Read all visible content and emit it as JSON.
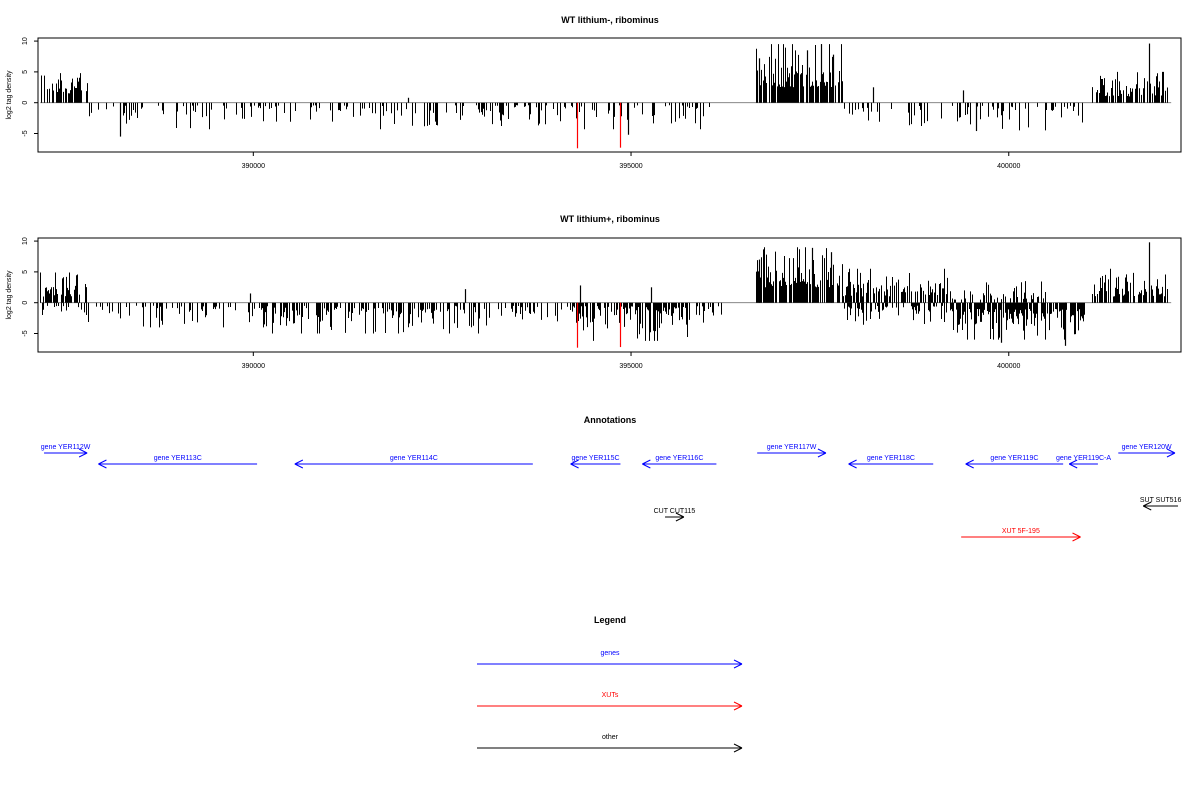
{
  "chart_data": [
    {
      "type": "bar",
      "title": "WT lithium-, ribominus",
      "ylabel": "log2 tag density",
      "xlim": [
        387150,
        402280
      ],
      "ylim": [
        -8,
        10.5
      ],
      "yticks": [
        10,
        5,
        0,
        -5
      ],
      "yticks_label": [
        "10",
        "5",
        "0",
        "-5"
      ],
      "xticks": [
        390000,
        395000,
        400000
      ],
      "xticks_label": [
        "390000",
        "395000",
        "400000"
      ],
      "colors": {
        "bars": "#000000",
        "highlight": "#ff0000"
      },
      "regions": [
        {
          "start": 387180,
          "end": 387800,
          "strand": "+",
          "min": 1.5,
          "max": 4.8,
          "density": 0.55
        },
        {
          "start": 387800,
          "end": 396050,
          "strand": "-",
          "min": 0.4,
          "max": 4.3,
          "density": 0.3
        },
        {
          "start": 396650,
          "end": 397800,
          "strand": "+",
          "min": 2.5,
          "max": 9.5,
          "density": 0.8
        },
        {
          "start": 397800,
          "end": 401000,
          "strand": "-",
          "min": 0.5,
          "max": 4.5,
          "density": 0.28
        },
        {
          "start": 401100,
          "end": 402100,
          "strand": "+",
          "min": 1.0,
          "max": 5.0,
          "density": 0.65
        }
      ],
      "peaks": [
        {
          "x": 394280,
          "y": -7.4,
          "color": "#ff0000"
        },
        {
          "x": 394860,
          "y": -7.3,
          "color": "#ff0000"
        },
        {
          "x": 396690,
          "y": 7.2
        },
        {
          "x": 397330,
          "y": 8.5
        },
        {
          "x": 397510,
          "y": 9.5
        },
        {
          "x": 397680,
          "y": 7.8
        },
        {
          "x": 401860,
          "y": 9.6
        },
        {
          "x": 388230,
          "y": -5.5
        },
        {
          "x": 394960,
          "y": -5.2
        },
        {
          "x": 399560,
          "y": -4.6
        },
        {
          "x": 392050,
          "y": 0.8
        },
        {
          "x": 398200,
          "y": 2.5
        },
        {
          "x": 399400,
          "y": 2.0
        }
      ]
    },
    {
      "type": "bar",
      "title": "WT lithium+, ribominus",
      "ylabel": "log2 tag density",
      "xlim": [
        387150,
        402280
      ],
      "ylim": [
        -8,
        10.5
      ],
      "yticks": [
        10,
        5,
        0,
        -5
      ],
      "yticks_label": [
        "10",
        "5",
        "0",
        "-5"
      ],
      "xticks": [
        390000,
        395000,
        400000
      ],
      "xticks_label": [
        "390000",
        "395000",
        "400000"
      ],
      "colors": {
        "bars": "#000000",
        "highlight": "#ff0000"
      },
      "regions": [
        {
          "start": 387180,
          "end": 387800,
          "strand": "+",
          "min": 1.0,
          "max": 4.9,
          "density": 0.6
        },
        {
          "start": 387180,
          "end": 387800,
          "strand": "-",
          "min": 0.5,
          "max": 2.0,
          "density": 0.25
        },
        {
          "start": 387800,
          "end": 390250,
          "strand": "-",
          "min": 0.5,
          "max": 4.0,
          "density": 0.35
        },
        {
          "start": 390250,
          "end": 393000,
          "strand": "-",
          "min": 0.5,
          "max": 5.0,
          "density": 0.55
        },
        {
          "start": 393000,
          "end": 394200,
          "strand": "-",
          "min": 0.5,
          "max": 4.0,
          "density": 0.35
        },
        {
          "start": 394200,
          "end": 396200,
          "strand": "-",
          "min": 0.5,
          "max": 6.2,
          "density": 0.6
        },
        {
          "start": 396650,
          "end": 397800,
          "strand": "+",
          "min": 2.5,
          "max": 9.0,
          "density": 0.85
        },
        {
          "start": 397800,
          "end": 399200,
          "strand": "+",
          "min": 1.0,
          "max": 5.5,
          "density": 0.6
        },
        {
          "start": 397800,
          "end": 399200,
          "strand": "-",
          "min": 0.5,
          "max": 4.0,
          "density": 0.4
        },
        {
          "start": 399200,
          "end": 401000,
          "strand": "-",
          "min": 1.0,
          "max": 6.0,
          "density": 0.75
        },
        {
          "start": 399200,
          "end": 400500,
          "strand": "+",
          "min": 0.5,
          "max": 3.5,
          "density": 0.35
        },
        {
          "start": 401100,
          "end": 402100,
          "strand": "+",
          "min": 1.0,
          "max": 5.5,
          "density": 0.7
        }
      ],
      "peaks": [
        {
          "x": 394280,
          "y": -7.3,
          "color": "#ff0000"
        },
        {
          "x": 394860,
          "y": -7.2,
          "color": "#ff0000"
        },
        {
          "x": 394330,
          "y": 2.8
        },
        {
          "x": 395260,
          "y": 2.5
        },
        {
          "x": 396700,
          "y": 7.0
        },
        {
          "x": 397400,
          "y": 8.9
        },
        {
          "x": 397650,
          "y": 8.2
        },
        {
          "x": 401850,
          "y": 9.8
        },
        {
          "x": 400750,
          "y": -7.0
        },
        {
          "x": 399900,
          "y": -6.5
        },
        {
          "x": 392800,
          "y": 2.2
        },
        {
          "x": 389950,
          "y": 1.5
        }
      ]
    }
  ],
  "annotations": {
    "title": "Annotations",
    "features": [
      {
        "label": "gene YER112W",
        "start": 387230,
        "end": 387800,
        "strand": "+",
        "row": 0,
        "color": "#0000ff"
      },
      {
        "label": "gene YER113C",
        "start": 387950,
        "end": 390050,
        "strand": "-",
        "row": 1,
        "color": "#0000ff"
      },
      {
        "label": "gene YER114C",
        "start": 390550,
        "end": 393700,
        "strand": "-",
        "row": 1,
        "color": "#0000ff"
      },
      {
        "label": "gene YER115C",
        "start": 394200,
        "end": 394860,
        "strand": "-",
        "row": 1,
        "color": "#0000ff"
      },
      {
        "label": "gene YER116C",
        "start": 395150,
        "end": 396130,
        "strand": "-",
        "row": 1,
        "color": "#0000ff"
      },
      {
        "label": "gene YER117W",
        "start": 396670,
        "end": 397580,
        "strand": "+",
        "row": 0,
        "color": "#0000ff"
      },
      {
        "label": "gene YER118C",
        "start": 397880,
        "end": 399000,
        "strand": "-",
        "row": 1,
        "color": "#0000ff"
      },
      {
        "label": "gene YER119C",
        "start": 399430,
        "end": 400720,
        "strand": "-",
        "row": 1,
        "color": "#0000ff"
      },
      {
        "label": "gene YER119C-A",
        "start": 400800,
        "end": 401180,
        "strand": "-",
        "row": 1,
        "color": "#0000ff"
      },
      {
        "label": "gene YER120W",
        "start": 401450,
        "end": 402200,
        "strand": "+",
        "row": 0,
        "color": "#0000ff"
      },
      {
        "label": "CUT CUT115",
        "start": 395450,
        "end": 395700,
        "strand": "+",
        "row": 3,
        "color": "#000000"
      },
      {
        "label": "XUT 5F-195",
        "start": 399370,
        "end": 400950,
        "strand": "+",
        "row": 4,
        "color": "#ff0000"
      },
      {
        "label": "SUT SUT516",
        "start": 401780,
        "end": 402240,
        "strand": "-",
        "row": 2,
        "color": "#000000"
      }
    ]
  },
  "legend": {
    "title": "Legend",
    "items": [
      {
        "label": "genes",
        "color": "#0000ff"
      },
      {
        "label": "XUTs",
        "color": "#ff0000"
      },
      {
        "label": "other",
        "color": "#000000"
      }
    ]
  }
}
